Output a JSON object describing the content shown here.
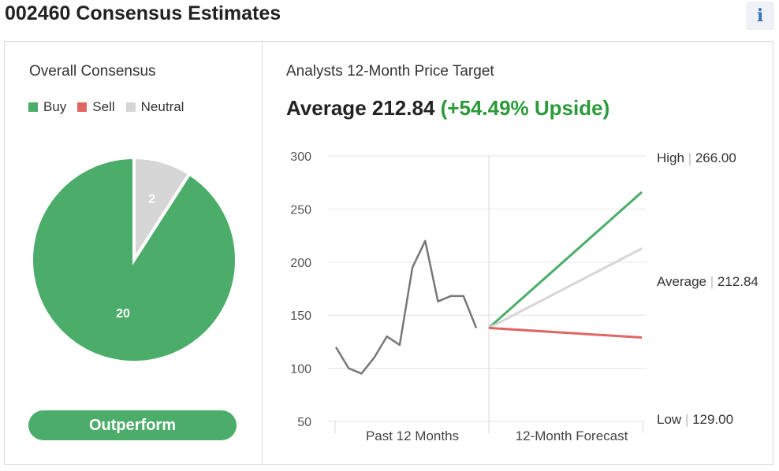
{
  "header": {
    "title": "002460 Consensus Estimates",
    "info_glyph": "i"
  },
  "consensus": {
    "title": "Overall Consensus",
    "legend": [
      {
        "label": "Buy",
        "color": "#4cad6a"
      },
      {
        "label": "Sell",
        "color": "#e06666"
      },
      {
        "label": "Neutral",
        "color": "#d6d6d6"
      }
    ],
    "rating": "Outperform"
  },
  "target": {
    "title": "Analysts 12-Month Price Target",
    "average_prefix": "Average 212.84",
    "upside": "(+54.49% Upside)"
  },
  "chart_data": [
    {
      "type": "pie",
      "slices": [
        {
          "label": "Buy",
          "value": 20,
          "color": "#4cad6a"
        },
        {
          "label": "Neutral",
          "value": 2,
          "color": "#d6d6d6"
        }
      ]
    },
    {
      "type": "line",
      "ylim": [
        50,
        300
      ],
      "yticks": [
        300,
        250,
        200,
        150,
        100,
        50
      ],
      "x_sections": [
        "Past 12 Months",
        "12-Month Forecast"
      ],
      "past_prices": [
        120,
        100,
        95,
        110,
        130,
        122,
        195,
        220,
        163,
        168,
        168,
        138
      ],
      "forecast_start": 138,
      "series": [
        {
          "name": "High",
          "value": 266.0,
          "label": "266.00",
          "color": "#4cad6a"
        },
        {
          "name": "Average",
          "value": 212.84,
          "label": "212.84",
          "color": "#d6d6d6"
        },
        {
          "name": "Low",
          "value": 129.0,
          "label": "129.00",
          "color": "#e06666"
        }
      ],
      "grid": true
    }
  ]
}
